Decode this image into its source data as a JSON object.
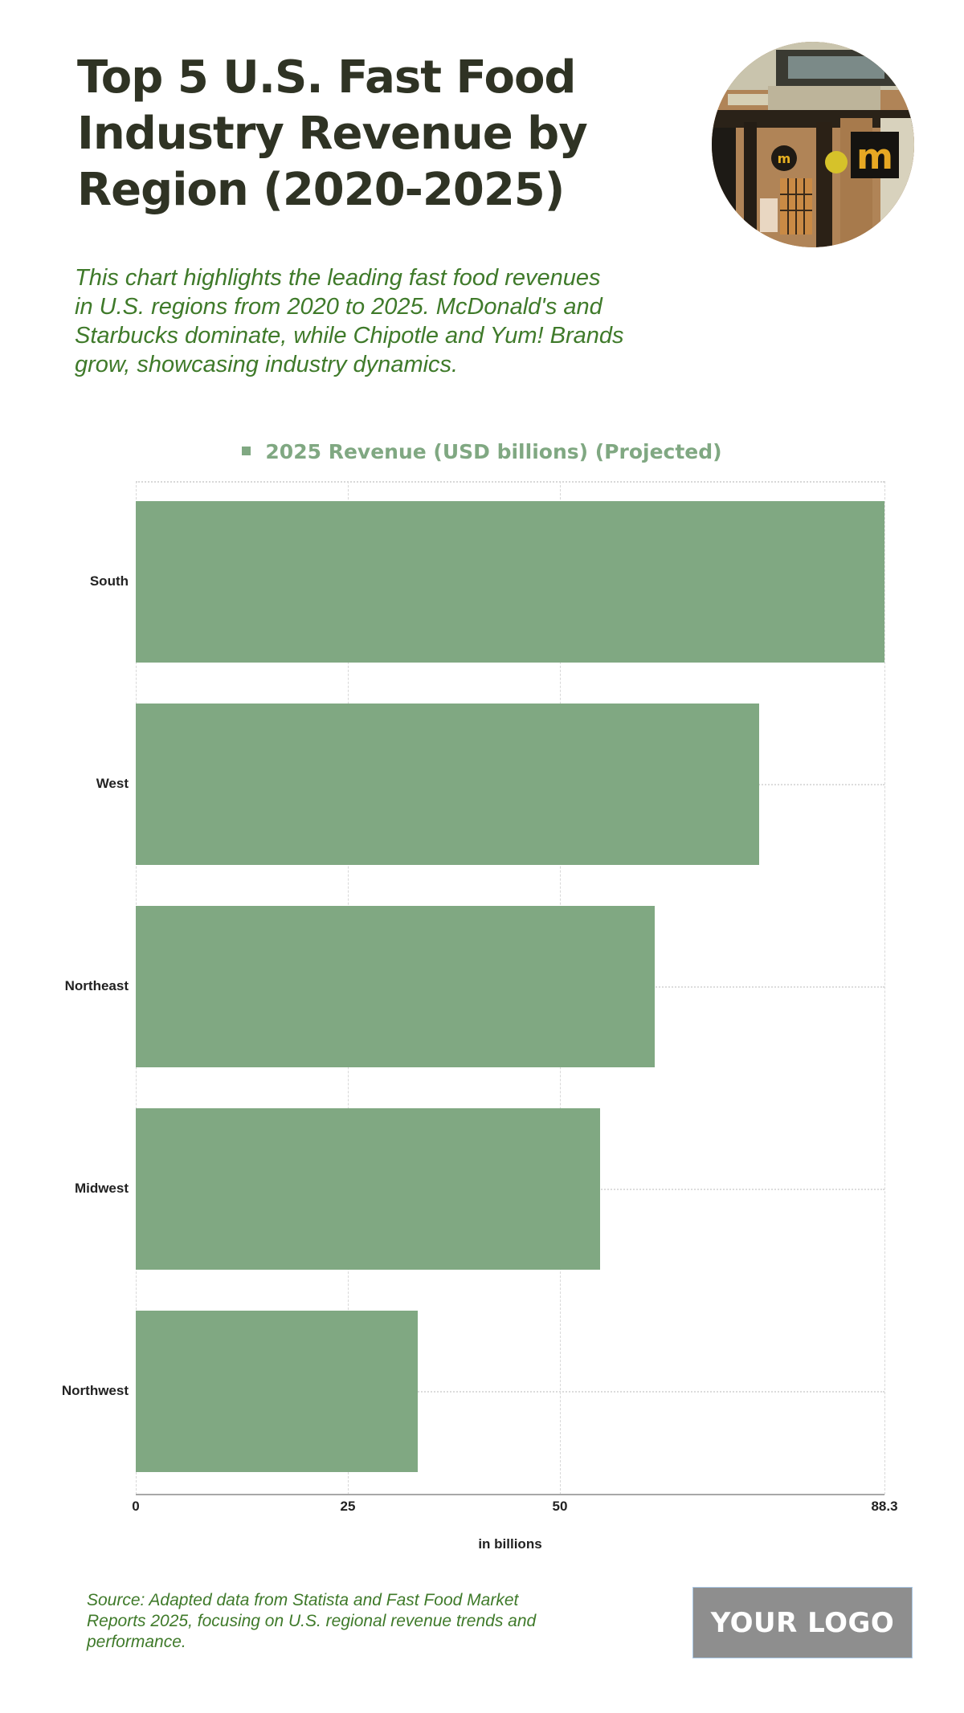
{
  "header": {
    "title_lines": [
      "Top 5 U.S. Fast Food",
      "Industry Revenue by",
      "Region (2020-2025)"
    ],
    "subtitle_lines": [
      "This chart highlights the leading fast food revenues",
      "in U.S. regions from 2020 to 2025. McDonald's and",
      "Starbucks dominate, while Chipotle and Yum! Brands",
      "grow, showcasing industry dynamics."
    ],
    "image_alt": "McDonald's storefront photo"
  },
  "legend": {
    "label": "2025 Revenue (USD billions) (Projected)",
    "color": "#80a882"
  },
  "chart_data": {
    "type": "bar",
    "orientation": "horizontal",
    "title": "Top 5 U.S. Fast Food Industry Revenue by Region (2020-2025)",
    "categories": [
      "South",
      "West",
      "Northeast",
      "Midwest",
      "Northwest"
    ],
    "series": [
      {
        "name": "2025 Revenue (USD billions) (Projected)",
        "values": [
          88.3,
          73.5,
          61.2,
          54.8,
          33.3
        ],
        "color": "#80a882"
      }
    ],
    "xlabel": "in billions",
    "ylabel": "",
    "xlim": [
      0,
      88.3
    ],
    "x_ticks": [
      0,
      25,
      50,
      88.3
    ],
    "x_tick_labels": [
      "0",
      "25",
      "50",
      "88.3"
    ],
    "grid": true,
    "legend_position": "top"
  },
  "footer": {
    "source_lines": [
      "Source: Adapted data from Statista and Fast Food Market",
      "Reports 2025, focusing on U.S. regional revenue trends and",
      "performance."
    ],
    "logo_text": "YOUR LOGO"
  }
}
